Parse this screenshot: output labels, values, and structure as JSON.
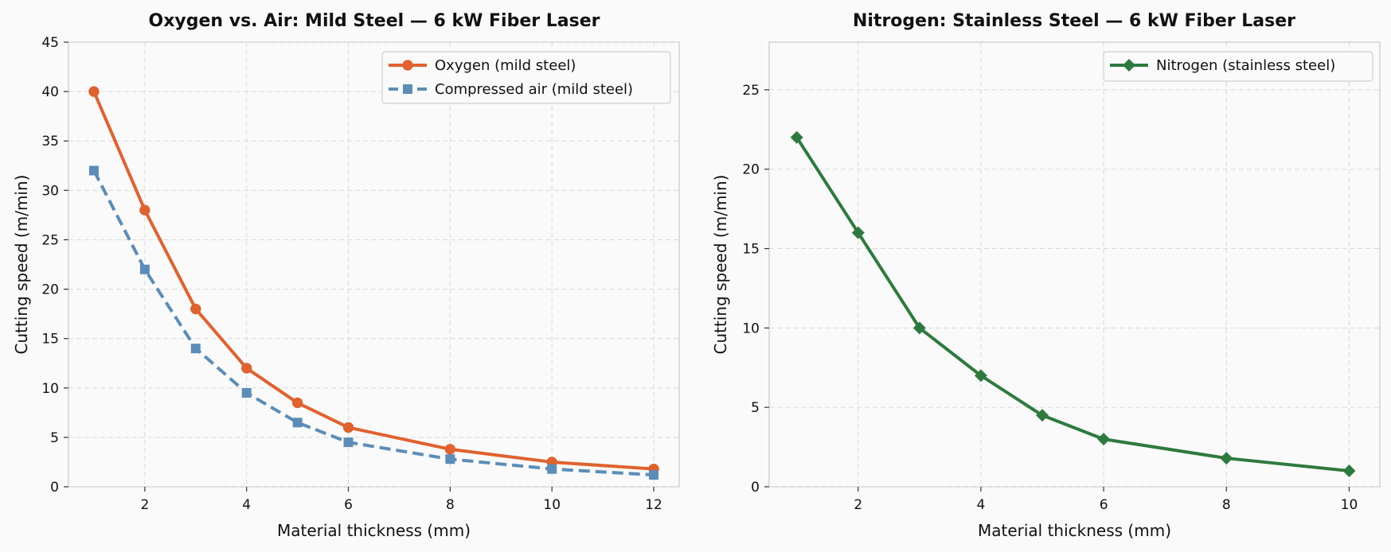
{
  "chart_data": [
    {
      "type": "line",
      "title": "Oxygen vs. Air: Mild Steel — 6 kW Fiber Laser",
      "xlabel": "Material thickness (mm)",
      "ylabel": "Cutting speed (m/min)",
      "xlim": [
        0.5,
        12.5
      ],
      "ylim": [
        0,
        45
      ],
      "xticks": [
        2,
        4,
        6,
        8,
        10,
        12
      ],
      "yticks": [
        0,
        5,
        10,
        15,
        20,
        25,
        30,
        35,
        40,
        45
      ],
      "grid": true,
      "legend_position": "top-right",
      "x": [
        1,
        2,
        3,
        4,
        5,
        6,
        8,
        10,
        12
      ],
      "series": [
        {
          "name": "Oxygen (mild steel)",
          "values": [
            40,
            28,
            18,
            12,
            8.5,
            6,
            3.8,
            2.5,
            1.8
          ],
          "color": "#e0622e",
          "marker": "circle",
          "dash": "solid"
        },
        {
          "name": "Compressed air (mild steel)",
          "values": [
            32,
            22,
            14,
            9.5,
            6.5,
            4.5,
            2.8,
            1.8,
            1.2
          ],
          "color": "#5b8db8",
          "marker": "square",
          "dash": "dashed"
        }
      ]
    },
    {
      "type": "line",
      "title": "Nitrogen: Stainless Steel — 6 kW Fiber Laser",
      "xlabel": "Material thickness (mm)",
      "ylabel": "Cutting speed (m/min)",
      "xlim": [
        0.55,
        10.5
      ],
      "ylim": [
        0,
        28
      ],
      "xticks": [
        2,
        4,
        6,
        8,
        10
      ],
      "yticks": [
        0,
        5,
        10,
        15,
        20,
        25
      ],
      "grid": true,
      "legend_position": "top-right",
      "x": [
        1,
        2,
        3,
        4,
        5,
        6,
        8,
        10
      ],
      "series": [
        {
          "name": "Nitrogen (stainless steel)",
          "values": [
            22,
            16,
            10,
            7,
            4.5,
            3,
            1.8,
            1
          ],
          "color": "#2e7a3e",
          "marker": "diamond",
          "dash": "solid"
        }
      ]
    }
  ]
}
